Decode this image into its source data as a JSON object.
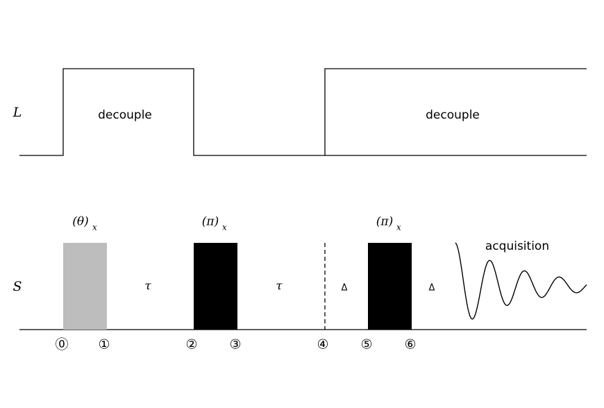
{
  "channels": [
    {
      "label": "L",
      "blocks": [
        "decouple",
        "decouple"
      ]
    },
    {
      "label": "S",
      "pulses": [
        {
          "label": "(θ)",
          "subscript": "x"
        },
        {
          "label": "(π)",
          "subscript": "x"
        },
        {
          "label": "(π)",
          "subscript": "x"
        }
      ],
      "delays": [
        "τ",
        "τ",
        "Δ",
        "Δ"
      ],
      "acquisition": "acquisition"
    }
  ],
  "time_points": [
    "⓪",
    "①",
    "②",
    "③",
    "④",
    "⑤",
    "⑥"
  ]
}
